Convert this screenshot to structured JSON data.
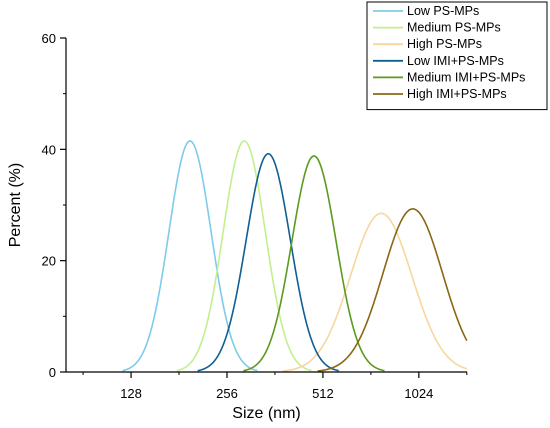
{
  "chart_data": {
    "type": "line",
    "xlabel": "Size (nm)",
    "ylabel": "Percent (%)",
    "x_scale": "log2",
    "xlim": [
      80,
      1450
    ],
    "ylim": [
      0,
      60
    ],
    "x_ticks": [
      128,
      256,
      512,
      1024
    ],
    "y_ticks": [
      0,
      20,
      40,
      60
    ],
    "grid": false,
    "legend_position": "top-right",
    "series": [
      {
        "name": "Low PS-MPs",
        "color": "#7ecbea",
        "peak_x": 196,
        "peak_y": 41.5,
        "sigma_log2": 0.22
      },
      {
        "name": "Medium PS-MPs",
        "color": "#c2ef8e",
        "peak_x": 290,
        "peak_y": 41.5,
        "sigma_log2": 0.22
      },
      {
        "name": "High PS-MPs",
        "color": "#f6d7a0",
        "peak_x": 780,
        "peak_y": 28.5,
        "sigma_log2": 0.32
      },
      {
        "name": "Low IMI+PS-MPs",
        "color": "#0f5f94",
        "peak_x": 345,
        "peak_y": 39.2,
        "sigma_log2": 0.23
      },
      {
        "name": "Medium IMI+PS-MPs",
        "color": "#5c9a1e",
        "peak_x": 480,
        "peak_y": 38.8,
        "sigma_log2": 0.23
      },
      {
        "name": "High IMI+PS-MPs",
        "color": "#8a6713",
        "peak_x": 980,
        "peak_y": 29.3,
        "sigma_log2": 0.31
      }
    ]
  }
}
